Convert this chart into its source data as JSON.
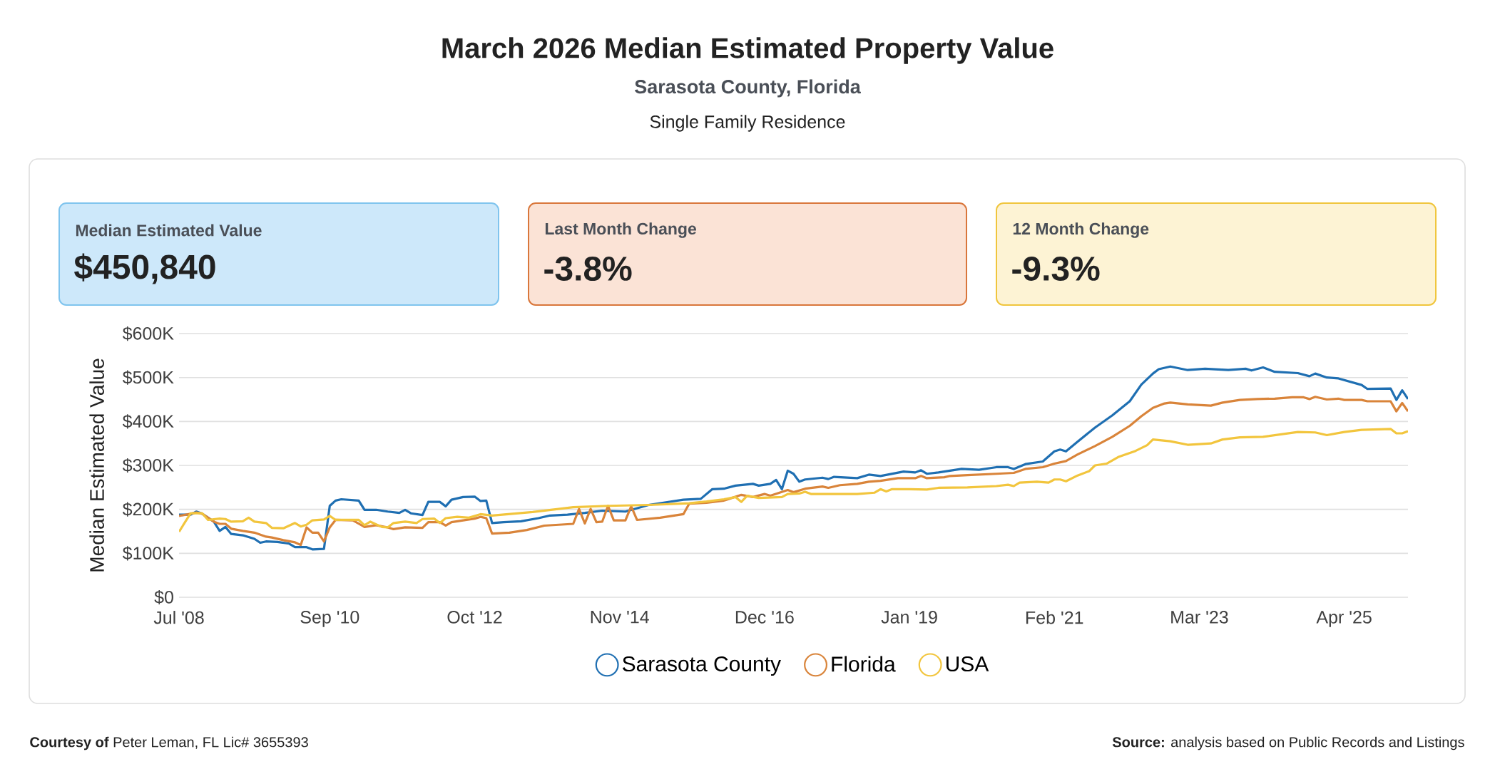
{
  "chart_data": {
    "type": "line",
    "title": "March 2026 Median Estimated Property Value",
    "subtitle": "Sarasota County, Florida",
    "annotations": [
      "Single Family Residence",
      "Median Estimated Value",
      "$450,840",
      "Last Month Change",
      "-3.8%",
      "12 Month Change",
      "-9.3%",
      "**Courtesy of** Peter Leman, FL Lic# 3655393",
      "**Source:** analysis based on Public Records and Listings"
    ],
    "ylabel": "Median Estimated Value",
    "xlim": [
      "2008-07",
      "2026-03"
    ],
    "xticks": [
      {
        "value": "2008-07",
        "label": "Jul '08"
      },
      {
        "value": "2010-09",
        "label": "Sep '10"
      },
      {
        "value": "2012-10",
        "label": "Oct '12"
      },
      {
        "value": "2014-11",
        "label": "Nov '14"
      },
      {
        "value": "2016-12",
        "label": "Dec '16"
      },
      {
        "value": "2019-01",
        "label": "Jan '19"
      },
      {
        "value": "2021-02",
        "label": "Feb '21"
      },
      {
        "value": "2023-03",
        "label": "Mar '23"
      },
      {
        "value": "2025-04",
        "label": "Apr '25"
      }
    ],
    "ylim": [
      0,
      600
    ],
    "yticks": [
      {
        "value": 0,
        "label": "$0"
      },
      {
        "value": 100,
        "label": "$100K"
      },
      {
        "value": 200,
        "label": "$200K"
      },
      {
        "value": 300,
        "label": "$300K"
      },
      {
        "value": 400,
        "label": "$400K"
      },
      {
        "value": 500,
        "label": "$500K"
      },
      {
        "value": 600,
        "label": "$600K"
      }
    ],
    "grid": "y",
    "legend": "bottom",
    "series": [
      {
        "name": "Sarasota County",
        "color": "#1f6fb2",
        "x": [
          "2008-07",
          "2008-09",
          "2008-10",
          "2008-11",
          "2009-01",
          "2009-02",
          "2009-03",
          "2009-04",
          "2009-06",
          "2009-08",
          "2009-09",
          "2009-10",
          "2009-12",
          "2010-02",
          "2010-03",
          "2010-05",
          "2010-06",
          "2010-08",
          "2010-09",
          "2010-10",
          "2010-11",
          "2011-02",
          "2011-03",
          "2011-05",
          "2011-07",
          "2011-09",
          "2011-10",
          "2011-11",
          "2012-01",
          "2012-02",
          "2012-04",
          "2012-05",
          "2012-06",
          "2012-08",
          "2012-10",
          "2012-11",
          "2012-12",
          "2013-01",
          "2013-03",
          "2013-06",
          "2013-09",
          "2013-11",
          "2014-02",
          "2014-05",
          "2014-08",
          "2014-12",
          "2015-04",
          "2015-10",
          "2016-01",
          "2016-03",
          "2016-05",
          "2016-07",
          "2016-10",
          "2016-11",
          "2017-01",
          "2017-02",
          "2017-03",
          "2017-04",
          "2017-05",
          "2017-06",
          "2017-07",
          "2017-10",
          "2017-11",
          "2017-12",
          "2018-04",
          "2018-06",
          "2018-08",
          "2018-12",
          "2019-02",
          "2019-03",
          "2019-04",
          "2019-06",
          "2019-10",
          "2020-01",
          "2020-04",
          "2020-06",
          "2020-07",
          "2020-09",
          "2020-12",
          "2021-02",
          "2021-03",
          "2021-04",
          "2021-06",
          "2021-09",
          "2021-12",
          "2022-03",
          "2022-05",
          "2022-07",
          "2022-08",
          "2022-10",
          "2023-01",
          "2023-04",
          "2023-08",
          "2023-11",
          "2023-12",
          "2024-02",
          "2024-04",
          "2024-08",
          "2024-10",
          "2024-11",
          "2025-01",
          "2025-03",
          "2025-07",
          "2025-08",
          "2025-12",
          "2026-01",
          "2026-02",
          "2026-03"
        ],
        "values": [
          188,
          188,
          195,
          190,
          172,
          151,
          160,
          144,
          141,
          133,
          124,
          127,
          126,
          122,
          114,
          114,
          109,
          110,
          208,
          220,
          223,
          220,
          199,
          199,
          195,
          192,
          199,
          191,
          187,
          217,
          217,
          207,
          222,
          228,
          229,
          219,
          220,
          169,
          171,
          173,
          180,
          186,
          188,
          192,
          197,
          195,
          210,
          222,
          224,
          246,
          247,
          254,
          258,
          254,
          258,
          267,
          246,
          288,
          281,
          263,
          268,
          272,
          269,
          274,
          271,
          279,
          276,
          286,
          284,
          289,
          281,
          284,
          292,
          290,
          296,
          296,
          292,
          303,
          309,
          332,
          336,
          332,
          354,
          386,
          414,
          446,
          484,
          509,
          519,
          525,
          517,
          520,
          517,
          520,
          516,
          523,
          513,
          510,
          503,
          509,
          500,
          498,
          483,
          474,
          475,
          449,
          471,
          451
        ]
      },
      {
        "name": "Florida",
        "color": "#d9843a",
        "x": [
          "2008-07",
          "2008-09",
          "2008-10",
          "2008-11",
          "2009-01",
          "2009-02",
          "2009-03",
          "2009-04",
          "2009-06",
          "2009-08",
          "2009-10",
          "2009-11",
          "2010-01",
          "2010-03",
          "2010-04",
          "2010-05",
          "2010-06",
          "2010-07",
          "2010-08",
          "2010-09",
          "2010-10",
          "2011-01",
          "2011-03",
          "2011-05",
          "2011-07",
          "2011-08",
          "2011-10",
          "2012-01",
          "2012-02",
          "2012-04",
          "2012-05",
          "2012-06",
          "2012-08",
          "2012-10",
          "2012-11",
          "2012-12",
          "2013-01",
          "2013-04",
          "2013-07",
          "2013-10",
          "2014-03",
          "2014-04",
          "2014-05",
          "2014-06",
          "2014-07",
          "2014-08",
          "2014-09",
          "2014-10",
          "2014-12",
          "2015-01",
          "2015-02",
          "2015-06",
          "2015-10",
          "2015-11",
          "2016-02",
          "2016-05",
          "2016-08",
          "2016-10",
          "2016-12",
          "2017-01",
          "2017-04",
          "2017-05",
          "2017-07",
          "2017-10",
          "2017-11",
          "2018-01",
          "2018-04",
          "2018-06",
          "2018-08",
          "2018-11",
          "2019-02",
          "2019-03",
          "2019-04",
          "2019-07",
          "2019-08",
          "2019-11",
          "2020-04",
          "2020-07",
          "2020-09",
          "2020-12",
          "2021-02",
          "2021-04",
          "2021-06",
          "2021-09",
          "2021-12",
          "2022-03",
          "2022-05",
          "2022-07",
          "2022-09",
          "2022-10",
          "2023-01",
          "2023-05",
          "2023-07",
          "2023-10",
          "2024-01",
          "2024-04",
          "2024-07",
          "2024-09",
          "2024-10",
          "2024-11",
          "2025-01",
          "2025-03",
          "2025-04",
          "2025-07",
          "2025-08",
          "2025-12",
          "2026-01",
          "2026-02",
          "2026-03"
        ],
        "values": [
          185,
          190,
          193,
          190,
          172,
          167,
          167,
          156,
          151,
          147,
          138,
          136,
          130,
          125,
          119,
          159,
          147,
          147,
          127,
          159,
          176,
          175,
          160,
          164,
          159,
          155,
          159,
          158,
          171,
          171,
          163,
          171,
          175,
          179,
          183,
          180,
          145,
          147,
          153,
          163,
          167,
          201,
          168,
          201,
          171,
          172,
          208,
          175,
          175,
          207,
          176,
          181,
          189,
          213,
          215,
          220,
          233,
          228,
          235,
          231,
          244,
          239,
          247,
          252,
          249,
          255,
          258,
          263,
          265,
          271,
          271,
          276,
          271,
          273,
          276,
          278,
          281,
          283,
          292,
          296,
          304,
          310,
          325,
          344,
          365,
          390,
          412,
          431,
          441,
          443,
          439,
          436,
          443,
          449,
          451,
          452,
          455,
          455,
          451,
          456,
          450,
          452,
          449,
          449,
          446,
          446,
          423,
          442,
          423
        ]
      },
      {
        "name": "USA",
        "color": "#f2c53d",
        "x": [
          "2008-07",
          "2008-09",
          "2008-11",
          "2008-12",
          "2009-02",
          "2009-03",
          "2009-04",
          "2009-06",
          "2009-07",
          "2009-08",
          "2009-10",
          "2009-11",
          "2010-01",
          "2010-02",
          "2010-03",
          "2010-04",
          "2010-05",
          "2010-06",
          "2010-08",
          "2010-09",
          "2010-10",
          "2011-02",
          "2011-03",
          "2011-04",
          "2011-06",
          "2011-07",
          "2011-08",
          "2011-10",
          "2011-12",
          "2012-01",
          "2012-03",
          "2012-04",
          "2012-05",
          "2012-07",
          "2012-09",
          "2012-11",
          "2013-01",
          "2013-08",
          "2014-03",
          "2014-09",
          "2015-04",
          "2015-11",
          "2016-02",
          "2016-05",
          "2016-07",
          "2016-08",
          "2016-09",
          "2016-11",
          "2017-03",
          "2017-04",
          "2017-06",
          "2017-07",
          "2017-08",
          "2017-11",
          "2018-04",
          "2018-07",
          "2018-08",
          "2018-09",
          "2018-10",
          "2019-01",
          "2019-04",
          "2019-06",
          "2019-11",
          "2020-04",
          "2020-06",
          "2020-07",
          "2020-08",
          "2020-11",
          "2021-01",
          "2021-02",
          "2021-03",
          "2021-04",
          "2021-06",
          "2021-08",
          "2021-09",
          "2021-11",
          "2022-01",
          "2022-04",
          "2022-06",
          "2022-07",
          "2022-10",
          "2023-01",
          "2023-05",
          "2023-07",
          "2023-10",
          "2024-02",
          "2024-08",
          "2024-11",
          "2025-01",
          "2025-04",
          "2025-07",
          "2025-12",
          "2026-01",
          "2026-02",
          "2026-03"
        ],
        "values": [
          149,
          191,
          191,
          176,
          179,
          178,
          172,
          173,
          181,
          172,
          169,
          158,
          157,
          163,
          169,
          161,
          165,
          175,
          177,
          185,
          176,
          176,
          164,
          172,
          160,
          159,
          169,
          172,
          169,
          178,
          179,
          169,
          180,
          183,
          181,
          189,
          186,
          194,
          205,
          208,
          210,
          214,
          218,
          223,
          228,
          217,
          231,
          226,
          228,
          235,
          236,
          240,
          235,
          235,
          235,
          238,
          246,
          241,
          246,
          246,
          245,
          249,
          250,
          253,
          256,
          253,
          261,
          263,
          261,
          268,
          268,
          264,
          277,
          287,
          300,
          304,
          319,
          333,
          346,
          359,
          355,
          347,
          350,
          359,
          364,
          365,
          376,
          375,
          369,
          376,
          381,
          383,
          373,
          373,
          378
        ]
      }
    ]
  }
}
